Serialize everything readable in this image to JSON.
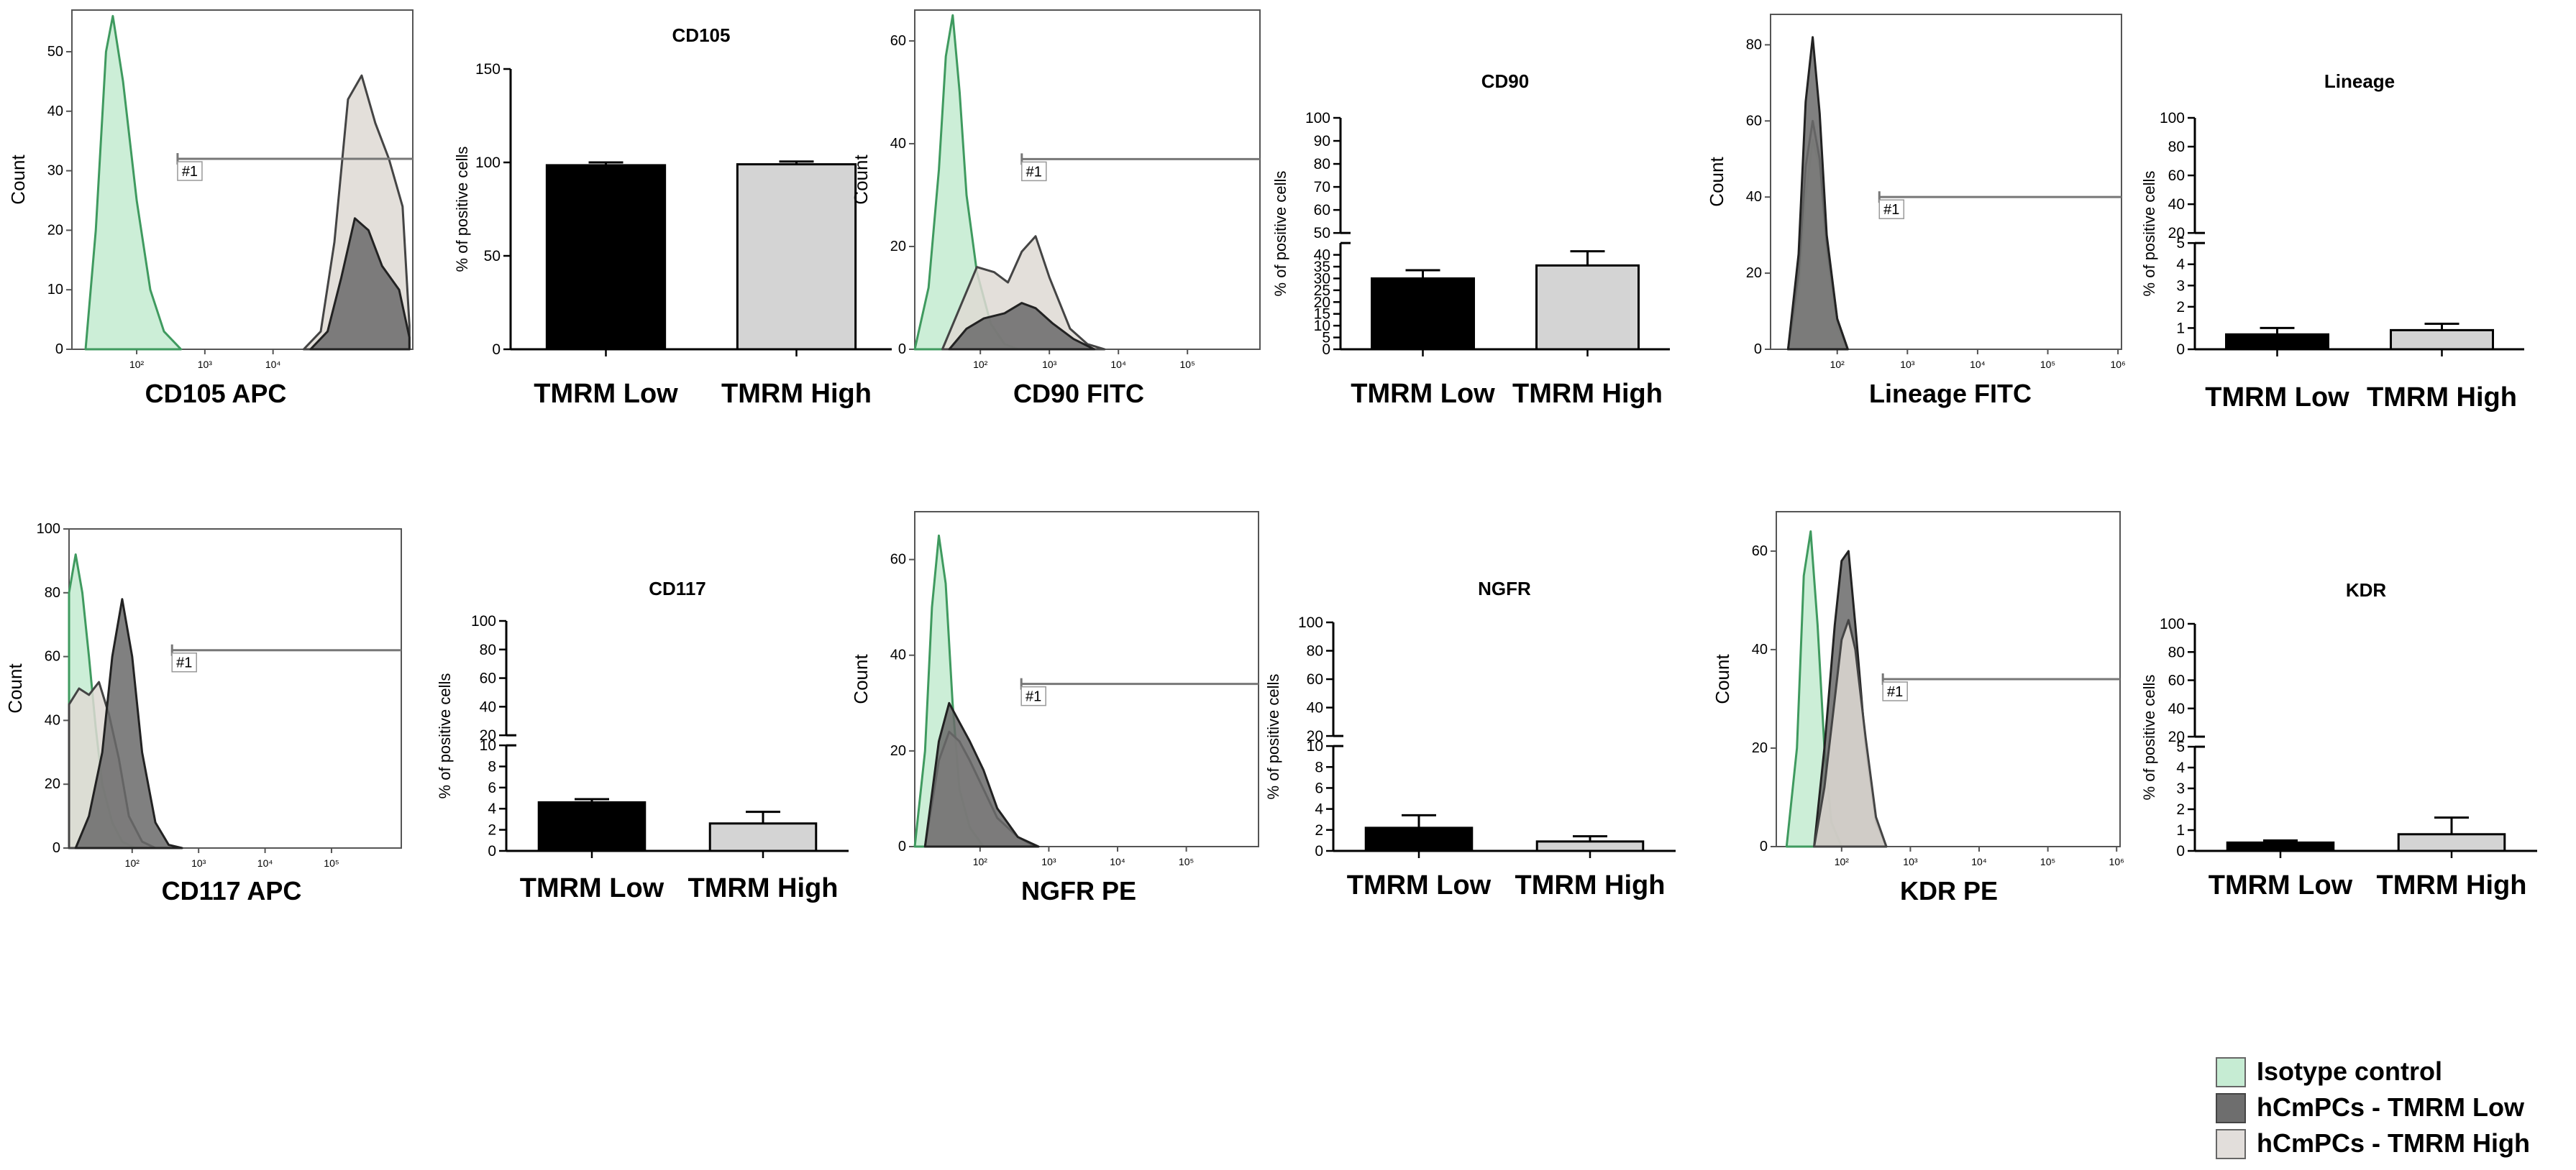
{
  "legend": {
    "items": [
      {
        "label": "Isotype control",
        "color": "#c6ecd3"
      },
      {
        "label": "hCmPCs - TMRM Low",
        "color": "#6e6e6e"
      },
      {
        "label": "hCmPCs - TMRM High",
        "color": "#e2dedb"
      }
    ]
  },
  "colors": {
    "isotype_fill": "#c6ecd3",
    "isotype_line": "#3f9a5f",
    "low_fill": "#6a6a6a",
    "high_fill": "#ded9d4",
    "low_bar": "#000000",
    "high_bar": "#d4d4d4"
  },
  "chart_data": [
    {
      "type": "histogram",
      "panel": "hist-cd105",
      "xlabel": "CD105 APC",
      "ylabel": "Count",
      "yticks": [
        "0",
        "10",
        "20",
        "30",
        "40",
        "50"
      ],
      "ymax": 57,
      "xticks": [
        "10²",
        "10³",
        "10⁴"
      ],
      "gate": "#1",
      "gate_y": 32,
      "series": {
        "isotype": [
          [
            0.04,
            0
          ],
          [
            0.07,
            20
          ],
          [
            0.1,
            50
          ],
          [
            0.12,
            56
          ],
          [
            0.15,
            45
          ],
          [
            0.19,
            25
          ],
          [
            0.23,
            10
          ],
          [
            0.27,
            3
          ],
          [
            0.32,
            0
          ]
        ],
        "high": [
          [
            0.68,
            0
          ],
          [
            0.73,
            3
          ],
          [
            0.77,
            18
          ],
          [
            0.81,
            42
          ],
          [
            0.85,
            46
          ],
          [
            0.89,
            38
          ],
          [
            0.93,
            32
          ],
          [
            0.97,
            24
          ],
          [
            0.99,
            4
          ]
        ],
        "low": [
          [
            0.7,
            0
          ],
          [
            0.75,
            3
          ],
          [
            0.79,
            12
          ],
          [
            0.83,
            22
          ],
          [
            0.87,
            20
          ],
          [
            0.91,
            14
          ],
          [
            0.96,
            10
          ],
          [
            0.99,
            2
          ]
        ]
      }
    },
    {
      "type": "bar",
      "panel": "bar-cd105",
      "title": "CD105",
      "ylabel": "% of positive cells",
      "categories": [
        "TMRM Low",
        "TMRM High"
      ],
      "values": [
        98.5,
        99.0
      ],
      "errors": [
        1.5,
        1.5
      ],
      "yticks": [
        "0",
        "50",
        "100",
        "150"
      ],
      "ylim": [
        0,
        150
      ]
    },
    {
      "type": "histogram",
      "panel": "hist-cd90",
      "xlabel": "CD90 FITC",
      "ylabel": "Count",
      "yticks": [
        "0",
        "20",
        "40",
        "60"
      ],
      "ymax": 66,
      "xticks": [
        "10²",
        "10³",
        "10⁴",
        "10⁵"
      ],
      "gate": "#1",
      "gate_y": 37,
      "series": {
        "isotype": [
          [
            0.0,
            0
          ],
          [
            0.04,
            12
          ],
          [
            0.07,
            35
          ],
          [
            0.09,
            57
          ],
          [
            0.11,
            65
          ],
          [
            0.13,
            50
          ],
          [
            0.15,
            30
          ],
          [
            0.18,
            15
          ],
          [
            0.22,
            5
          ],
          [
            0.26,
            1
          ],
          [
            0.3,
            0
          ]
        ],
        "high": [
          [
            0.08,
            0
          ],
          [
            0.13,
            8
          ],
          [
            0.18,
            16
          ],
          [
            0.23,
            15
          ],
          [
            0.27,
            13
          ],
          [
            0.31,
            19
          ],
          [
            0.35,
            22
          ],
          [
            0.39,
            14
          ],
          [
            0.45,
            4
          ],
          [
            0.5,
            1
          ],
          [
            0.55,
            0
          ]
        ],
        "low": [
          [
            0.1,
            0
          ],
          [
            0.15,
            4
          ],
          [
            0.2,
            6
          ],
          [
            0.26,
            7
          ],
          [
            0.31,
            9
          ],
          [
            0.35,
            8
          ],
          [
            0.4,
            5
          ],
          [
            0.46,
            2
          ],
          [
            0.52,
            0
          ]
        ]
      }
    },
    {
      "type": "bar",
      "panel": "bar-cd90",
      "title": "CD90",
      "ylabel": "% of positive cells",
      "categories": [
        "TMRM Low",
        "TMRM High"
      ],
      "values": [
        30.0,
        35.5
      ],
      "errors": [
        3.5,
        6.0
      ],
      "yticks": [
        "0",
        "5",
        "10",
        "15",
        "20",
        "25",
        "30",
        "35",
        "40",
        "50",
        "60",
        "70",
        "80",
        "90",
        "100"
      ],
      "ylim": [
        0,
        100
      ],
      "axis_break": [
        45,
        50
      ]
    },
    {
      "type": "histogram",
      "panel": "hist-lineage",
      "xlabel": "Lineage FITC",
      "ylabel": "Count",
      "yticks": [
        "0",
        "20",
        "40",
        "60",
        "80"
      ],
      "ymax": 88,
      "xticks": [
        "10²",
        "10³",
        "10⁴",
        "10⁵",
        "10⁶"
      ],
      "gate": "#1",
      "gate_y": 40,
      "series": {
        "isotype": [
          [
            0.05,
            0
          ],
          [
            0.08,
            15
          ],
          [
            0.1,
            40
          ],
          [
            0.12,
            55
          ],
          [
            0.14,
            48
          ],
          [
            0.16,
            25
          ],
          [
            0.19,
            6
          ],
          [
            0.22,
            0
          ]
        ],
        "high": [
          [
            0.05,
            0
          ],
          [
            0.08,
            20
          ],
          [
            0.1,
            48
          ],
          [
            0.12,
            60
          ],
          [
            0.14,
            50
          ],
          [
            0.16,
            28
          ],
          [
            0.19,
            8
          ],
          [
            0.22,
            0
          ]
        ],
        "low": [
          [
            0.05,
            0
          ],
          [
            0.08,
            25
          ],
          [
            0.1,
            65
          ],
          [
            0.12,
            82
          ],
          [
            0.14,
            62
          ],
          [
            0.16,
            30
          ],
          [
            0.19,
            8
          ],
          [
            0.22,
            0
          ]
        ]
      }
    },
    {
      "type": "bar",
      "panel": "bar-lineage",
      "title": "Lineage",
      "ylabel": "% of positive cells",
      "categories": [
        "TMRM Low",
        "TMRM High"
      ],
      "values": [
        0.7,
        0.9
      ],
      "errors": [
        0.3,
        0.3
      ],
      "yticks": [
        "0",
        "1",
        "2",
        "3",
        "4",
        "5",
        "20",
        "40",
        "60",
        "80",
        "100"
      ],
      "ylim": [
        0,
        100
      ],
      "axis_break": [
        5,
        20
      ]
    },
    {
      "type": "histogram",
      "panel": "hist-cd117",
      "xlabel": "CD117 APC",
      "ylabel": "Count",
      "yticks": [
        "0",
        "20",
        "40",
        "60",
        "80",
        "100"
      ],
      "ymax": 100,
      "xticks": [
        "10²",
        "10³",
        "10⁴",
        "10⁵"
      ],
      "gate": "#1",
      "gate_y": 62,
      "series": {
        "isotype": [
          [
            0.0,
            80
          ],
          [
            0.02,
            92
          ],
          [
            0.04,
            80
          ],
          [
            0.06,
            60
          ],
          [
            0.08,
            38
          ],
          [
            0.1,
            20
          ],
          [
            0.13,
            8
          ],
          [
            0.16,
            2
          ],
          [
            0.2,
            0
          ]
        ],
        "high": [
          [
            0.0,
            45
          ],
          [
            0.03,
            50
          ],
          [
            0.06,
            48
          ],
          [
            0.09,
            52
          ],
          [
            0.12,
            42
          ],
          [
            0.15,
            28
          ],
          [
            0.18,
            10
          ],
          [
            0.22,
            2
          ],
          [
            0.26,
            0
          ]
        ],
        "low": [
          [
            0.02,
            0
          ],
          [
            0.06,
            10
          ],
          [
            0.1,
            30
          ],
          [
            0.13,
            60
          ],
          [
            0.16,
            78
          ],
          [
            0.19,
            60
          ],
          [
            0.22,
            30
          ],
          [
            0.26,
            8
          ],
          [
            0.3,
            1
          ],
          [
            0.34,
            0
          ]
        ]
      }
    },
    {
      "type": "bar",
      "panel": "bar-cd117",
      "title": "CD117",
      "ylabel": "% of positive cells",
      "categories": [
        "TMRM Low",
        "TMRM High"
      ],
      "values": [
        4.6,
        2.6
      ],
      "errors": [
        0.3,
        1.1
      ],
      "yticks": [
        "0",
        "2",
        "4",
        "6",
        "8",
        "10",
        "20",
        "40",
        "60",
        "80",
        "100"
      ],
      "ylim": [
        0,
        100
      ],
      "axis_break": [
        10,
        20
      ]
    },
    {
      "type": "histogram",
      "panel": "hist-ngfr",
      "xlabel": "NGFR PE",
      "ylabel": "Count",
      "yticks": [
        "0",
        "20",
        "40",
        "60"
      ],
      "ymax": 70,
      "xticks": [
        "10²",
        "10³",
        "10⁴",
        "10⁵"
      ],
      "gate": "#1",
      "gate_y": 34,
      "series": {
        "isotype": [
          [
            0.0,
            0
          ],
          [
            0.03,
            20
          ],
          [
            0.05,
            50
          ],
          [
            0.07,
            65
          ],
          [
            0.09,
            55
          ],
          [
            0.11,
            30
          ],
          [
            0.13,
            12
          ],
          [
            0.16,
            4
          ],
          [
            0.2,
            0
          ]
        ],
        "high": [
          [
            0.03,
            0
          ],
          [
            0.07,
            18
          ],
          [
            0.1,
            24
          ],
          [
            0.13,
            22
          ],
          [
            0.16,
            18
          ],
          [
            0.2,
            12
          ],
          [
            0.24,
            6
          ],
          [
            0.3,
            2
          ],
          [
            0.35,
            0
          ]
        ],
        "low": [
          [
            0.03,
            0
          ],
          [
            0.07,
            22
          ],
          [
            0.1,
            30
          ],
          [
            0.13,
            26
          ],
          [
            0.16,
            22
          ],
          [
            0.2,
            16
          ],
          [
            0.24,
            8
          ],
          [
            0.3,
            2
          ],
          [
            0.36,
            0
          ]
        ]
      }
    },
    {
      "type": "bar",
      "panel": "bar-ngfr",
      "title": "NGFR",
      "ylabel": "% of positive cells",
      "categories": [
        "TMRM Low",
        "TMRM High"
      ],
      "values": [
        2.2,
        0.9
      ],
      "errors": [
        1.2,
        0.5
      ],
      "yticks": [
        "0",
        "2",
        "4",
        "6",
        "8",
        "10",
        "20",
        "40",
        "60",
        "80",
        "100"
      ],
      "ylim": [
        0,
        100
      ],
      "axis_break": [
        10,
        20
      ]
    },
    {
      "type": "histogram",
      "panel": "hist-kdr",
      "xlabel": "KDR PE",
      "ylabel": "Count",
      "yticks": [
        "0",
        "20",
        "40",
        "60"
      ],
      "ymax": 68,
      "xticks": [
        "10²",
        "10³",
        "10⁴",
        "10⁵",
        "10⁶"
      ],
      "gate": "#1",
      "gate_y": 34,
      "series": {
        "isotype": [
          [
            0.03,
            0
          ],
          [
            0.06,
            20
          ],
          [
            0.08,
            55
          ],
          [
            0.1,
            64
          ],
          [
            0.12,
            45
          ],
          [
            0.14,
            20
          ],
          [
            0.16,
            5
          ],
          [
            0.19,
            0
          ]
        ],
        "low": [
          [
            0.11,
            0
          ],
          [
            0.14,
            20
          ],
          [
            0.17,
            45
          ],
          [
            0.19,
            58
          ],
          [
            0.21,
            60
          ],
          [
            0.23,
            45
          ],
          [
            0.26,
            20
          ],
          [
            0.29,
            5
          ],
          [
            0.32,
            0
          ]
        ],
        "high": [
          [
            0.11,
            0
          ],
          [
            0.14,
            12
          ],
          [
            0.17,
            30
          ],
          [
            0.19,
            42
          ],
          [
            0.21,
            46
          ],
          [
            0.23,
            40
          ],
          [
            0.26,
            22
          ],
          [
            0.29,
            6
          ],
          [
            0.32,
            0
          ]
        ]
      }
    },
    {
      "type": "bar",
      "panel": "bar-kdr",
      "title": "KDR",
      "ylabel": "% of positive cells",
      "categories": [
        "TMRM Low",
        "TMRM High"
      ],
      "values": [
        0.4,
        0.8
      ],
      "errors": [
        0.1,
        0.8
      ],
      "yticks": [
        "0",
        "1",
        "2",
        "3",
        "4",
        "5",
        "20",
        "40",
        "60",
        "80",
        "100"
      ],
      "ylim": [
        0,
        100
      ],
      "axis_break": [
        5,
        20
      ]
    }
  ]
}
